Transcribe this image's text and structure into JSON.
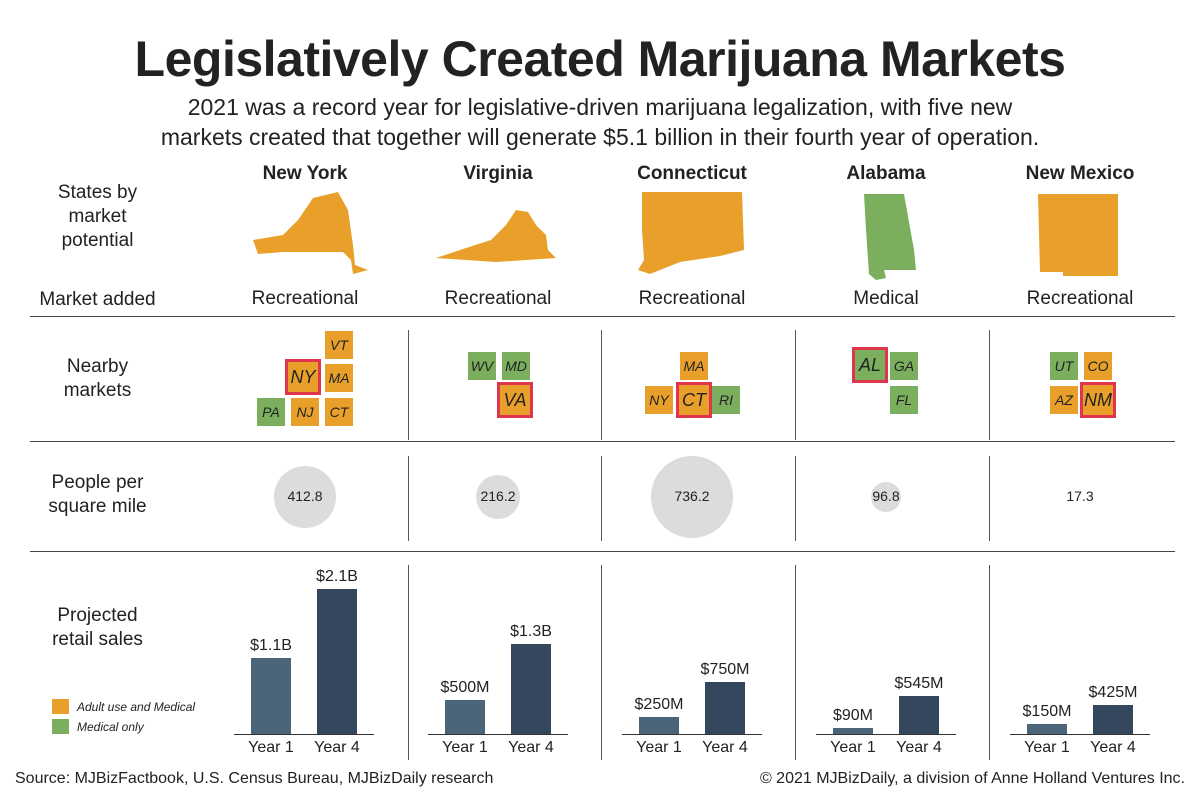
{
  "title": "Legislatively Created Marijuana Markets",
  "subtitle": [
    "2021 was a record year for legislative-driven marijuana legalization, with five new",
    "markets created that together will generate $5.1 billion in their fourth year of operation."
  ],
  "row_labels": {
    "states": "States by market potential",
    "market": "Market added",
    "nearby": "Nearby markets",
    "density": "People per square mile",
    "sales": "Projected retail sales"
  },
  "colors": {
    "adult": "#e9a02a",
    "medical": "#7baf5e",
    "highlight": "#e0364d",
    "year1": "#4a6579",
    "year4": "#34475d",
    "circle": "#dedcdb"
  },
  "legend": [
    {
      "label": "Adult use and Medical",
      "type": "adult"
    },
    {
      "label": "Medical only",
      "type": "medical"
    }
  ],
  "chart_data": {
    "type": "bar",
    "categories": [
      "Year 1",
      "Year 4"
    ],
    "states": [
      {
        "name": "New York",
        "market": "Recreational",
        "density": 412.8,
        "density_label": "412.8",
        "sales": [
          1.1,
          2.1
        ],
        "sales_labels": [
          "$1.1B",
          "$2.1B"
        ],
        "nearby": [
          {
            "code": "VT",
            "type": "adult"
          },
          {
            "code": "NY",
            "type": "adult",
            "highlight": true
          },
          {
            "code": "MA",
            "type": "adult"
          },
          {
            "code": "PA",
            "type": "medical"
          },
          {
            "code": "NJ",
            "type": "adult"
          },
          {
            "code": "CT",
            "type": "adult"
          }
        ]
      },
      {
        "name": "Virginia",
        "market": "Recreational",
        "density": 216.2,
        "density_label": "216.2",
        "sales": [
          0.5,
          1.3
        ],
        "sales_labels": [
          "$500M",
          "$1.3B"
        ],
        "nearby": [
          {
            "code": "WV",
            "type": "medical"
          },
          {
            "code": "MD",
            "type": "medical"
          },
          {
            "code": "VA",
            "type": "adult",
            "highlight": true
          }
        ]
      },
      {
        "name": "Connecticut",
        "market": "Recreational",
        "density": 736.2,
        "density_label": "736.2",
        "sales": [
          0.25,
          0.75
        ],
        "sales_labels": [
          "$250M",
          "$750M"
        ],
        "nearby": [
          {
            "code": "MA",
            "type": "adult"
          },
          {
            "code": "NY",
            "type": "adult"
          },
          {
            "code": "CT",
            "type": "adult",
            "highlight": true
          },
          {
            "code": "RI",
            "type": "medical"
          }
        ]
      },
      {
        "name": "Alabama",
        "market": "Medical",
        "density": 96.8,
        "density_label": "96.8",
        "sales": [
          0.09,
          0.545
        ],
        "sales_labels": [
          "$90M",
          "$545M"
        ],
        "nearby": [
          {
            "code": "AL",
            "type": "medical",
            "highlight": true
          },
          {
            "code": "GA",
            "type": "medical"
          },
          {
            "code": "FL",
            "type": "medical"
          }
        ]
      },
      {
        "name": "New Mexico",
        "market": "Recreational",
        "density": 17.3,
        "density_label": "17.3",
        "sales": [
          0.15,
          0.425
        ],
        "sales_labels": [
          "$150M",
          "$425M"
        ],
        "nearby": [
          {
            "code": "UT",
            "type": "medical"
          },
          {
            "code": "CO",
            "type": "adult"
          },
          {
            "code": "AZ",
            "type": "adult"
          },
          {
            "code": "NM",
            "type": "adult",
            "highlight": true
          }
        ]
      }
    ]
  },
  "footer": {
    "source": "Source: MJBizFactbook, U.S. Census Bureau, MJBizDaily research",
    "copyright": "© 2021 MJBizDaily, a division of Anne Holland Ventures Inc."
  }
}
